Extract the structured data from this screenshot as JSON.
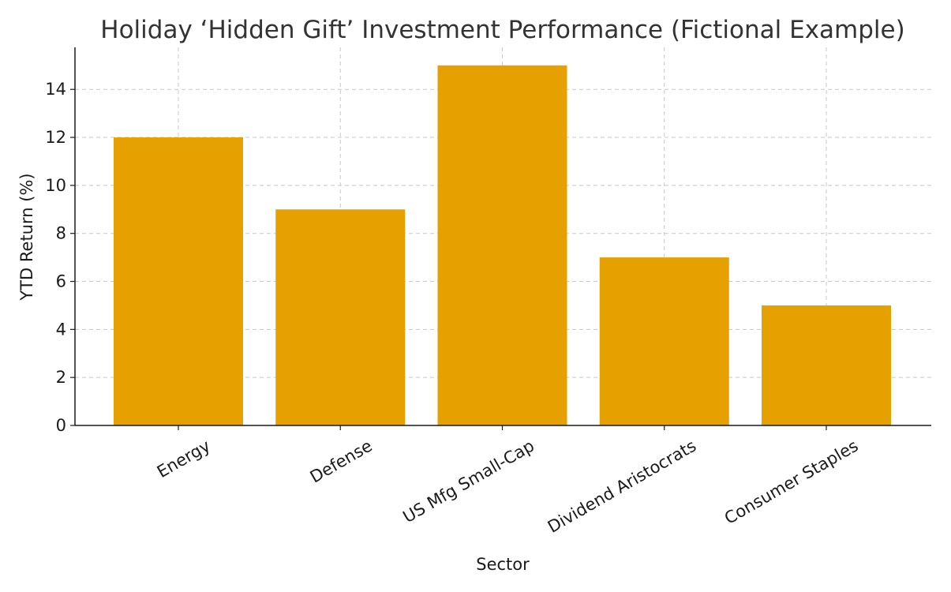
{
  "chart_data": {
    "type": "bar",
    "title": "Holiday ‘Hidden Gift’ Investment Performance (Fictional Example)",
    "xlabel": "Sector",
    "ylabel": "YTD Return (%)",
    "categories": [
      "Energy",
      "Defense",
      "US Mfg Small-Cap",
      "Dividend Aristocrats",
      "Consumer Staples"
    ],
    "values": [
      12,
      9,
      15,
      7,
      5
    ],
    "ylim": [
      0,
      15.75
    ],
    "yticks": [
      0,
      2,
      4,
      6,
      8,
      10,
      12,
      14
    ],
    "grid": true,
    "bar_color": "#E6A000",
    "x_tick_rotation": "30 degrees"
  }
}
